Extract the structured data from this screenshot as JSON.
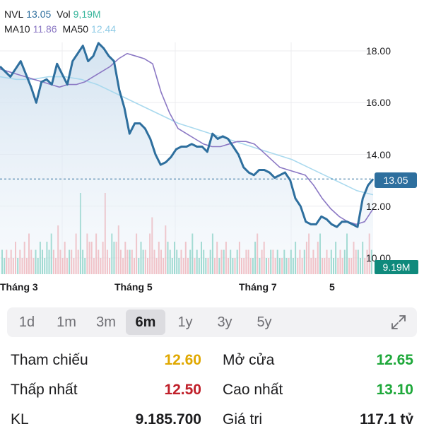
{
  "legend": {
    "symbol": "NVL",
    "price": "13.05",
    "vol_label": "Vol",
    "vol": "9,19M",
    "ma10_label": "MA10",
    "ma10": "11.86",
    "ma50_label": "MA50",
    "ma50": "12.44"
  },
  "colors": {
    "price": "#2e6f9e",
    "ma10": "#8b78c4",
    "ma50": "#a9d9ee",
    "up": "#36b59b",
    "down": "#ef7f86",
    "yellow": "#e0a800",
    "red": "#c0202a",
    "green": "#1ea83a"
  },
  "y_axis": [
    "18.00",
    "16.00",
    "14.00",
    "12.00",
    "10.00"
  ],
  "price_tag": "13.05",
  "vol_tag": "9.19M",
  "x_axis": [
    "Tháng 3",
    "Tháng 5",
    "Tháng 7",
    "5"
  ],
  "tabs": [
    "1d",
    "1m",
    "3m",
    "6m",
    "1y",
    "3y",
    "5y"
  ],
  "active_tab": "6m",
  "stats": {
    "ref_label": "Tham chiếu",
    "ref": "12.60",
    "open_label": "Mở cửa",
    "open": "12.65",
    "low_label": "Thấp nhất",
    "low": "12.50",
    "high_label": "Cao nhất",
    "high": "13.10",
    "kl_label": "KL",
    "kl": "9,185,700",
    "value_label": "Giá trị",
    "value": "117,1 tỷ"
  },
  "chart_data": {
    "type": "line",
    "ylim": [
      10,
      18.5
    ],
    "price": [
      17.4,
      17.2,
      17.0,
      17.3,
      17.6,
      17.1,
      16.6,
      16.0,
      16.8,
      16.9,
      16.7,
      17.5,
      17.1,
      16.7,
      17.6,
      17.9,
      18.2,
      17.6,
      17.8,
      18.3,
      18.1,
      17.8,
      17.6,
      16.5,
      15.8,
      14.8,
      15.2,
      15.2,
      15.0,
      14.6,
      14.0,
      13.6,
      13.7,
      13.9,
      14.2,
      14.3,
      14.3,
      14.4,
      14.3,
      14.3,
      14.1,
      14.8,
      14.6,
      14.7,
      14.6,
      14.3,
      14.0,
      13.5,
      13.3,
      13.2,
      13.4,
      13.4,
      13.3,
      13.1,
      13.2,
      13.3,
      13.0,
      12.3,
      12.0,
      11.4,
      11.3,
      11.3,
      11.6,
      11.5,
      11.3,
      11.2,
      11.4,
      11.4,
      11.3,
      11.2,
      12.3,
      12.8,
      13.05
    ],
    "ma10": [
      17.3,
      17.2,
      17.1,
      17.0,
      16.9,
      16.8,
      16.7,
      16.6,
      16.7,
      16.7,
      16.8,
      17.0,
      17.2,
      17.4,
      17.7,
      17.9,
      17.8,
      17.7,
      17.5,
      16.4,
      15.6,
      15.0,
      14.8,
      14.6,
      14.4,
      14.3,
      14.3,
      14.4,
      14.5,
      14.5,
      14.4,
      14.1,
      13.8,
      13.5,
      13.4,
      13.3,
      13.2,
      12.8,
      12.3,
      11.9,
      11.6,
      11.4,
      11.3,
      11.4,
      11.9
    ],
    "ma50": [
      17.0,
      16.9,
      16.9,
      17.0,
      17.0,
      16.9,
      16.7,
      16.4,
      16.1,
      15.8,
      15.5,
      15.2,
      15.0,
      14.8,
      14.6,
      14.4,
      14.2,
      14.0,
      13.8,
      13.5,
      13.2,
      12.9,
      12.6,
      12.44
    ],
    "volume": [
      3,
      2,
      3,
      2,
      3,
      2,
      4,
      2,
      3,
      2,
      4,
      2,
      5,
      3,
      2,
      3,
      2,
      4,
      3,
      2,
      4,
      3,
      5,
      3,
      2,
      6,
      3,
      2,
      4,
      2,
      3,
      3,
      2,
      5,
      3,
      10,
      3,
      2,
      5,
      4,
      4,
      2,
      5,
      3,
      2,
      4,
      10,
      3,
      2,
      5,
      4,
      4,
      6,
      3,
      2,
      4,
      3,
      3,
      3,
      2,
      5,
      2,
      4,
      3,
      3,
      2,
      5,
      7,
      3,
      2,
      4,
      3,
      2,
      6,
      4,
      3,
      2,
      4,
      3,
      2,
      3,
      2,
      4,
      2,
      3,
      5,
      2,
      3,
      2,
      4,
      3,
      2,
      2,
      3,
      5,
      2,
      4,
      2,
      3,
      3,
      4,
      2,
      3,
      2,
      2,
      3,
      4,
      2,
      2,
      3,
      3,
      2,
      2,
      4,
      5,
      2,
      3,
      4,
      2,
      2,
      3,
      3,
      2,
      3,
      2,
      2,
      3,
      2,
      2,
      3,
      2,
      4,
      2,
      3,
      2,
      3,
      4,
      5,
      2,
      3,
      2,
      4,
      5,
      2,
      2,
      3,
      2,
      3,
      2,
      4,
      2,
      3,
      2,
      3,
      5,
      2,
      2,
      4,
      3,
      3,
      2,
      4,
      2,
      3,
      5,
      3
    ]
  }
}
